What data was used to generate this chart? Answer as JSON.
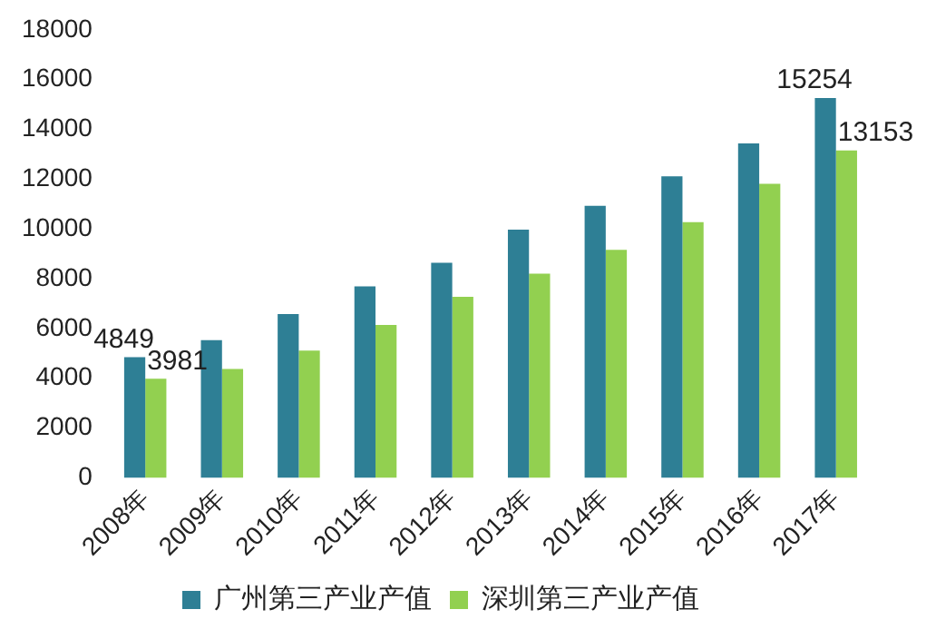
{
  "chart_data": {
    "type": "bar",
    "categories": [
      "2008年",
      "2009年",
      "2010年",
      "2011年",
      "2012年",
      "2013年",
      "2014年",
      "2015年",
      "2016年",
      "2017年"
    ],
    "series": [
      {
        "name": "广州第三产业产值",
        "color": "#2e7f95",
        "values": [
          4849,
          5530,
          6580,
          7690,
          8640,
          9970,
          10930,
          12110,
          13430,
          15254
        ],
        "value_labels": [
          "4849",
          null,
          null,
          null,
          null,
          null,
          null,
          null,
          null,
          "15254"
        ]
      },
      {
        "name": "深圳第三产业产值",
        "color": "#92d050",
        "values": [
          3981,
          4370,
          5110,
          6140,
          7270,
          8200,
          9160,
          10270,
          11810,
          13153
        ],
        "value_labels": [
          "3981",
          null,
          null,
          null,
          null,
          null,
          null,
          null,
          null,
          "13153"
        ]
      }
    ],
    "ylim": [
      0,
      18000
    ],
    "yticks": [
      0,
      2000,
      4000,
      6000,
      8000,
      10000,
      12000,
      14000,
      16000,
      18000
    ],
    "grid": false,
    "legend": "bottom"
  }
}
